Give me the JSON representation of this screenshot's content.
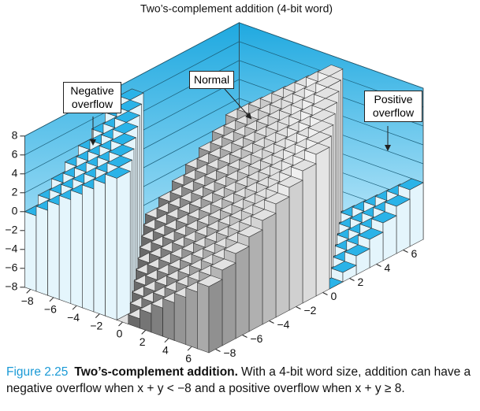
{
  "chart_data": {
    "type": "bar3d",
    "title": "Two’s-complement addition (4-bit word)",
    "x": [
      -8,
      -7,
      -6,
      -5,
      -4,
      -3,
      -2,
      -1,
      0,
      1,
      2,
      3,
      4,
      5,
      6,
      7
    ],
    "y": [
      -8,
      -7,
      -6,
      -5,
      -4,
      -3,
      -2,
      -1,
      0,
      1,
      2,
      3,
      4,
      5,
      6,
      7
    ],
    "values": [
      [
        0,
        1,
        2,
        3,
        4,
        5,
        6,
        7,
        -8,
        -7,
        -6,
        -5,
        -4,
        -3,
        -2,
        -1
      ],
      [
        1,
        2,
        3,
        4,
        5,
        6,
        7,
        -8,
        -7,
        -6,
        -5,
        -4,
        -3,
        -2,
        -1,
        0
      ],
      [
        2,
        3,
        4,
        5,
        6,
        7,
        -8,
        -7,
        -6,
        -5,
        -4,
        -3,
        -2,
        -1,
        0,
        1
      ],
      [
        3,
        4,
        5,
        6,
        7,
        -8,
        -7,
        -6,
        -5,
        -4,
        -3,
        -2,
        -1,
        0,
        1,
        2
      ],
      [
        4,
        5,
        6,
        7,
        -8,
        -7,
        -6,
        -5,
        -4,
        -3,
        -2,
        -1,
        0,
        1,
        2,
        3
      ],
      [
        5,
        6,
        7,
        -8,
        -7,
        -6,
        -5,
        -4,
        -3,
        -2,
        -1,
        0,
        1,
        2,
        3,
        4
      ],
      [
        6,
        7,
        -8,
        -7,
        -6,
        -5,
        -4,
        -3,
        -2,
        -1,
        0,
        1,
        2,
        3,
        4,
        5
      ],
      [
        7,
        -8,
        -7,
        -6,
        -5,
        -4,
        -3,
        -2,
        -1,
        0,
        1,
        2,
        3,
        4,
        5,
        6
      ],
      [
        -8,
        -7,
        -6,
        -5,
        -4,
        -3,
        -2,
        -1,
        0,
        1,
        2,
        3,
        4,
        5,
        6,
        7
      ],
      [
        -7,
        -6,
        -5,
        -4,
        -3,
        -2,
        -1,
        0,
        1,
        2,
        3,
        4,
        5,
        6,
        7,
        -8
      ],
      [
        -6,
        -5,
        -4,
        -3,
        -2,
        -1,
        0,
        1,
        2,
        3,
        4,
        5,
        6,
        7,
        -8,
        -7
      ],
      [
        -5,
        -4,
        -3,
        -2,
        -1,
        0,
        1,
        2,
        3,
        4,
        5,
        6,
        7,
        -8,
        -7,
        -6
      ],
      [
        -4,
        -3,
        -2,
        -1,
        0,
        1,
        2,
        3,
        4,
        5,
        6,
        7,
        -8,
        -7,
        -6,
        -5
      ],
      [
        -3,
        -2,
        -1,
        0,
        1,
        2,
        3,
        4,
        5,
        6,
        7,
        -8,
        -7,
        -6,
        -5,
        -4
      ],
      [
        -2,
        -1,
        0,
        1,
        2,
        3,
        4,
        5,
        6,
        7,
        -8,
        -7,
        -6,
        -5,
        -4,
        -3
      ],
      [
        -1,
        0,
        1,
        2,
        3,
        4,
        5,
        6,
        7,
        -8,
        -7,
        -6,
        -5,
        -4,
        -3,
        -2
      ]
    ],
    "xticks": [
      {
        "value": -8,
        "label": "−8"
      },
      {
        "value": -6,
        "label": "−6"
      },
      {
        "value": -4,
        "label": "−4"
      },
      {
        "value": -2,
        "label": "−2"
      },
      0,
      2,
      4,
      6
    ],
    "yticks": [
      {
        "value": -8,
        "label": "−8"
      },
      {
        "value": -6,
        "label": "−6"
      },
      {
        "value": -4,
        "label": "−4"
      },
      {
        "value": -2,
        "label": "−2"
      },
      0,
      2,
      4,
      6
    ],
    "zlim": [
      -8,
      8
    ],
    "zticks": [
      {
        "value": -8,
        "label": "−8"
      },
      {
        "value": -6,
        "label": "−6"
      },
      {
        "value": -4,
        "label": "−4"
      },
      {
        "value": -2,
        "label": "−2"
      },
      0,
      2,
      4,
      6,
      8
    ],
    "colors": {
      "overflow_top": "#2ab3e8",
      "overflow_face": "#e4f5fc",
      "normal_top": "#e2e2e2",
      "wall": "#4fc3f0"
    },
    "annotations": [
      "Negative overflow",
      "Normal",
      "Positive overflow"
    ]
  },
  "caption": {
    "label": "Figure 2.25",
    "title": "Two’s-complement addition.",
    "text": "With a 4-bit word size, addition can have a negative overflow when x + y < −8 and a positive overflow when x + y ≥ 8."
  }
}
